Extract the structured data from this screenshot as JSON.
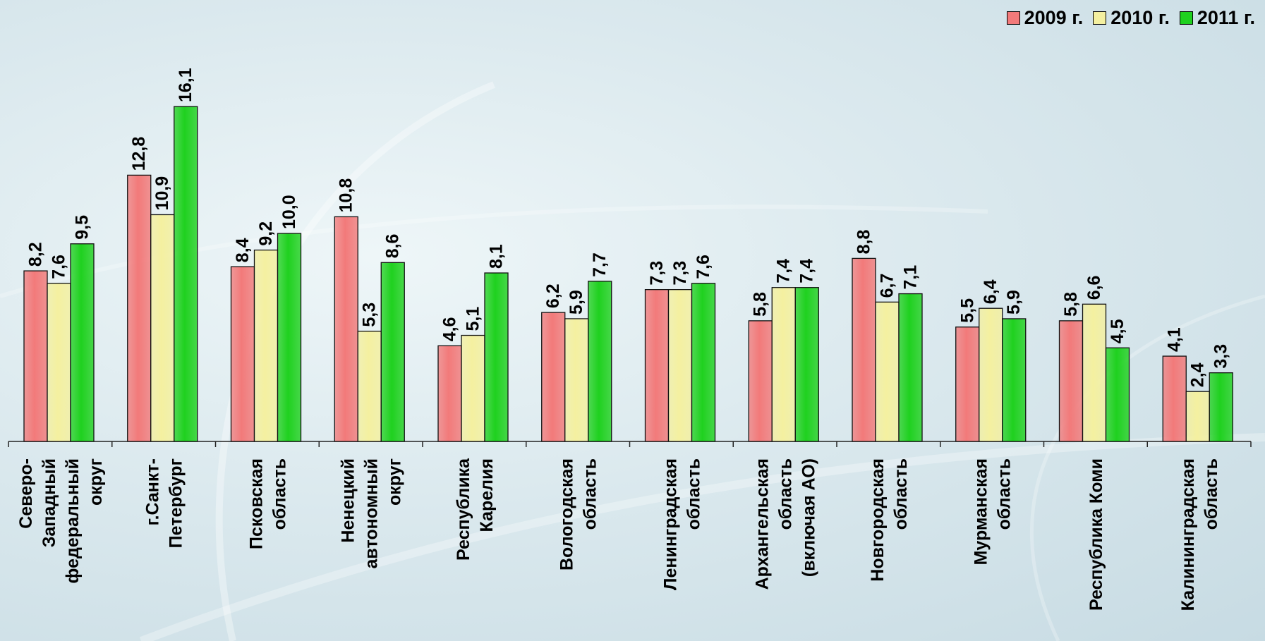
{
  "legend": [
    {
      "label": "2009 г.",
      "color": "#f27a7a"
    },
    {
      "label": "2010 г.",
      "color": "#f4f0a0"
    },
    {
      "label": "2011 г.",
      "color": "#1fd11f"
    }
  ],
  "chart_data": {
    "type": "bar",
    "title": "",
    "xlabel": "",
    "ylabel": "",
    "ylim": [
      0,
      17
    ],
    "grid": false,
    "legend_position": "top-right",
    "categories": [
      "Северо-Западный федеральный округ",
      "г.Санкт-Петербург",
      "Псковская область",
      "Ненецкий автономный округ",
      "Республика Карелия",
      "Вологодская область",
      "Ленинградская область",
      "Архангельская область (включая АО)",
      "Новгородская область",
      "Мурманская область",
      "Республика Коми",
      "Калининградская область"
    ],
    "category_lines": [
      [
        "Северо-",
        "Западный",
        "федеральный",
        "округ"
      ],
      [
        "г.Санкт-",
        "Петербург"
      ],
      [
        "Псковская",
        "область"
      ],
      [
        "Ненецкий",
        "автономный",
        "округ"
      ],
      [
        "Республика",
        "Карелия"
      ],
      [
        "Вологодская",
        "область"
      ],
      [
        "Ленинградская",
        "область"
      ],
      [
        "Архангельская",
        "область",
        "(включая АО)"
      ],
      [
        "Новгородская",
        "область"
      ],
      [
        "Мурманская",
        "область"
      ],
      [
        "Республика Коми"
      ],
      [
        "Калининградская",
        "область"
      ]
    ],
    "series": [
      {
        "name": "2009 г.",
        "color": "#f27a7a",
        "values": [
          8.2,
          12.8,
          8.4,
          10.8,
          4.6,
          6.2,
          7.3,
          5.8,
          8.8,
          5.5,
          5.8,
          4.1
        ],
        "labels": [
          "8,2",
          "12,8",
          "8,4",
          "10,8",
          "4,6",
          "6,2",
          "7,3",
          "5,8",
          "8,8",
          "5,5",
          "5,8",
          "4,1"
        ]
      },
      {
        "name": "2010 г.",
        "color": "#f4f0a0",
        "values": [
          7.6,
          10.9,
          9.2,
          5.3,
          5.1,
          5.9,
          7.3,
          7.4,
          6.7,
          6.4,
          6.6,
          2.4
        ],
        "labels": [
          "7,6",
          "10,9",
          "9,2",
          "5,3",
          "5,1",
          "5,9",
          "7,3",
          "7,4",
          "6,7",
          "6,4",
          "6,6",
          "2,4"
        ]
      },
      {
        "name": "2011 г.",
        "color": "#1fd11f",
        "values": [
          9.5,
          16.1,
          10.0,
          8.6,
          8.1,
          7.7,
          7.6,
          7.4,
          7.1,
          5.9,
          4.5,
          3.3
        ],
        "labels": [
          "9,5",
          "16,1",
          "10,0",
          "8,6",
          "8,1",
          "7,7",
          "7,6",
          "7,4",
          "7,1",
          "5,9",
          "4,5",
          "3,3"
        ]
      }
    ]
  }
}
